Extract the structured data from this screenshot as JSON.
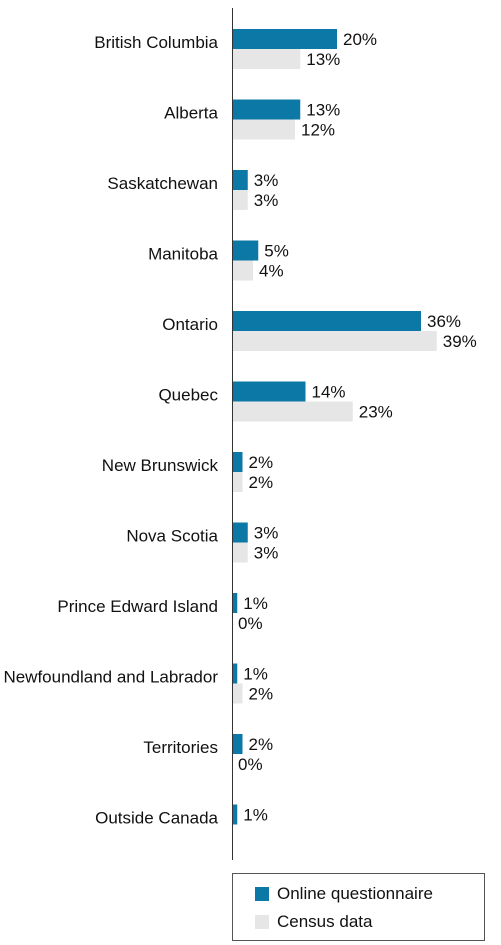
{
  "chart_data": {
    "type": "bar",
    "orientation": "horizontal",
    "categories": [
      "British Columbia",
      "Alberta",
      "Saskatchewan",
      "Manitoba",
      "Ontario",
      "Quebec",
      "New Brunswick",
      "Nova Scotia",
      "Prince Edward Island",
      "Newfoundland and Labrador",
      "Territories",
      "Outside Canada"
    ],
    "series": [
      {
        "name": "Online questionnaire",
        "color": "#0b78a6",
        "values": [
          20,
          13,
          3,
          5,
          36,
          14,
          2,
          3,
          1,
          1,
          2,
          1
        ],
        "labels": [
          "20%",
          "13%",
          "3%",
          "5%",
          "36%",
          "14%",
          "2%",
          "3%",
          "1%",
          "1%",
          "2%",
          "1%"
        ]
      },
      {
        "name": "Census data",
        "color": "#e6e6e6",
        "values": [
          13,
          12,
          3,
          4,
          39,
          23,
          2,
          3,
          0,
          2,
          0,
          null
        ],
        "labels": [
          "13%",
          "12%",
          "3%",
          "4%",
          "39%",
          "23%",
          "2%",
          "3%",
          "0%",
          "2%",
          "0%",
          null
        ]
      }
    ],
    "xlim": [
      0,
      40
    ],
    "grid": false,
    "legend_position": "bottom-right"
  }
}
